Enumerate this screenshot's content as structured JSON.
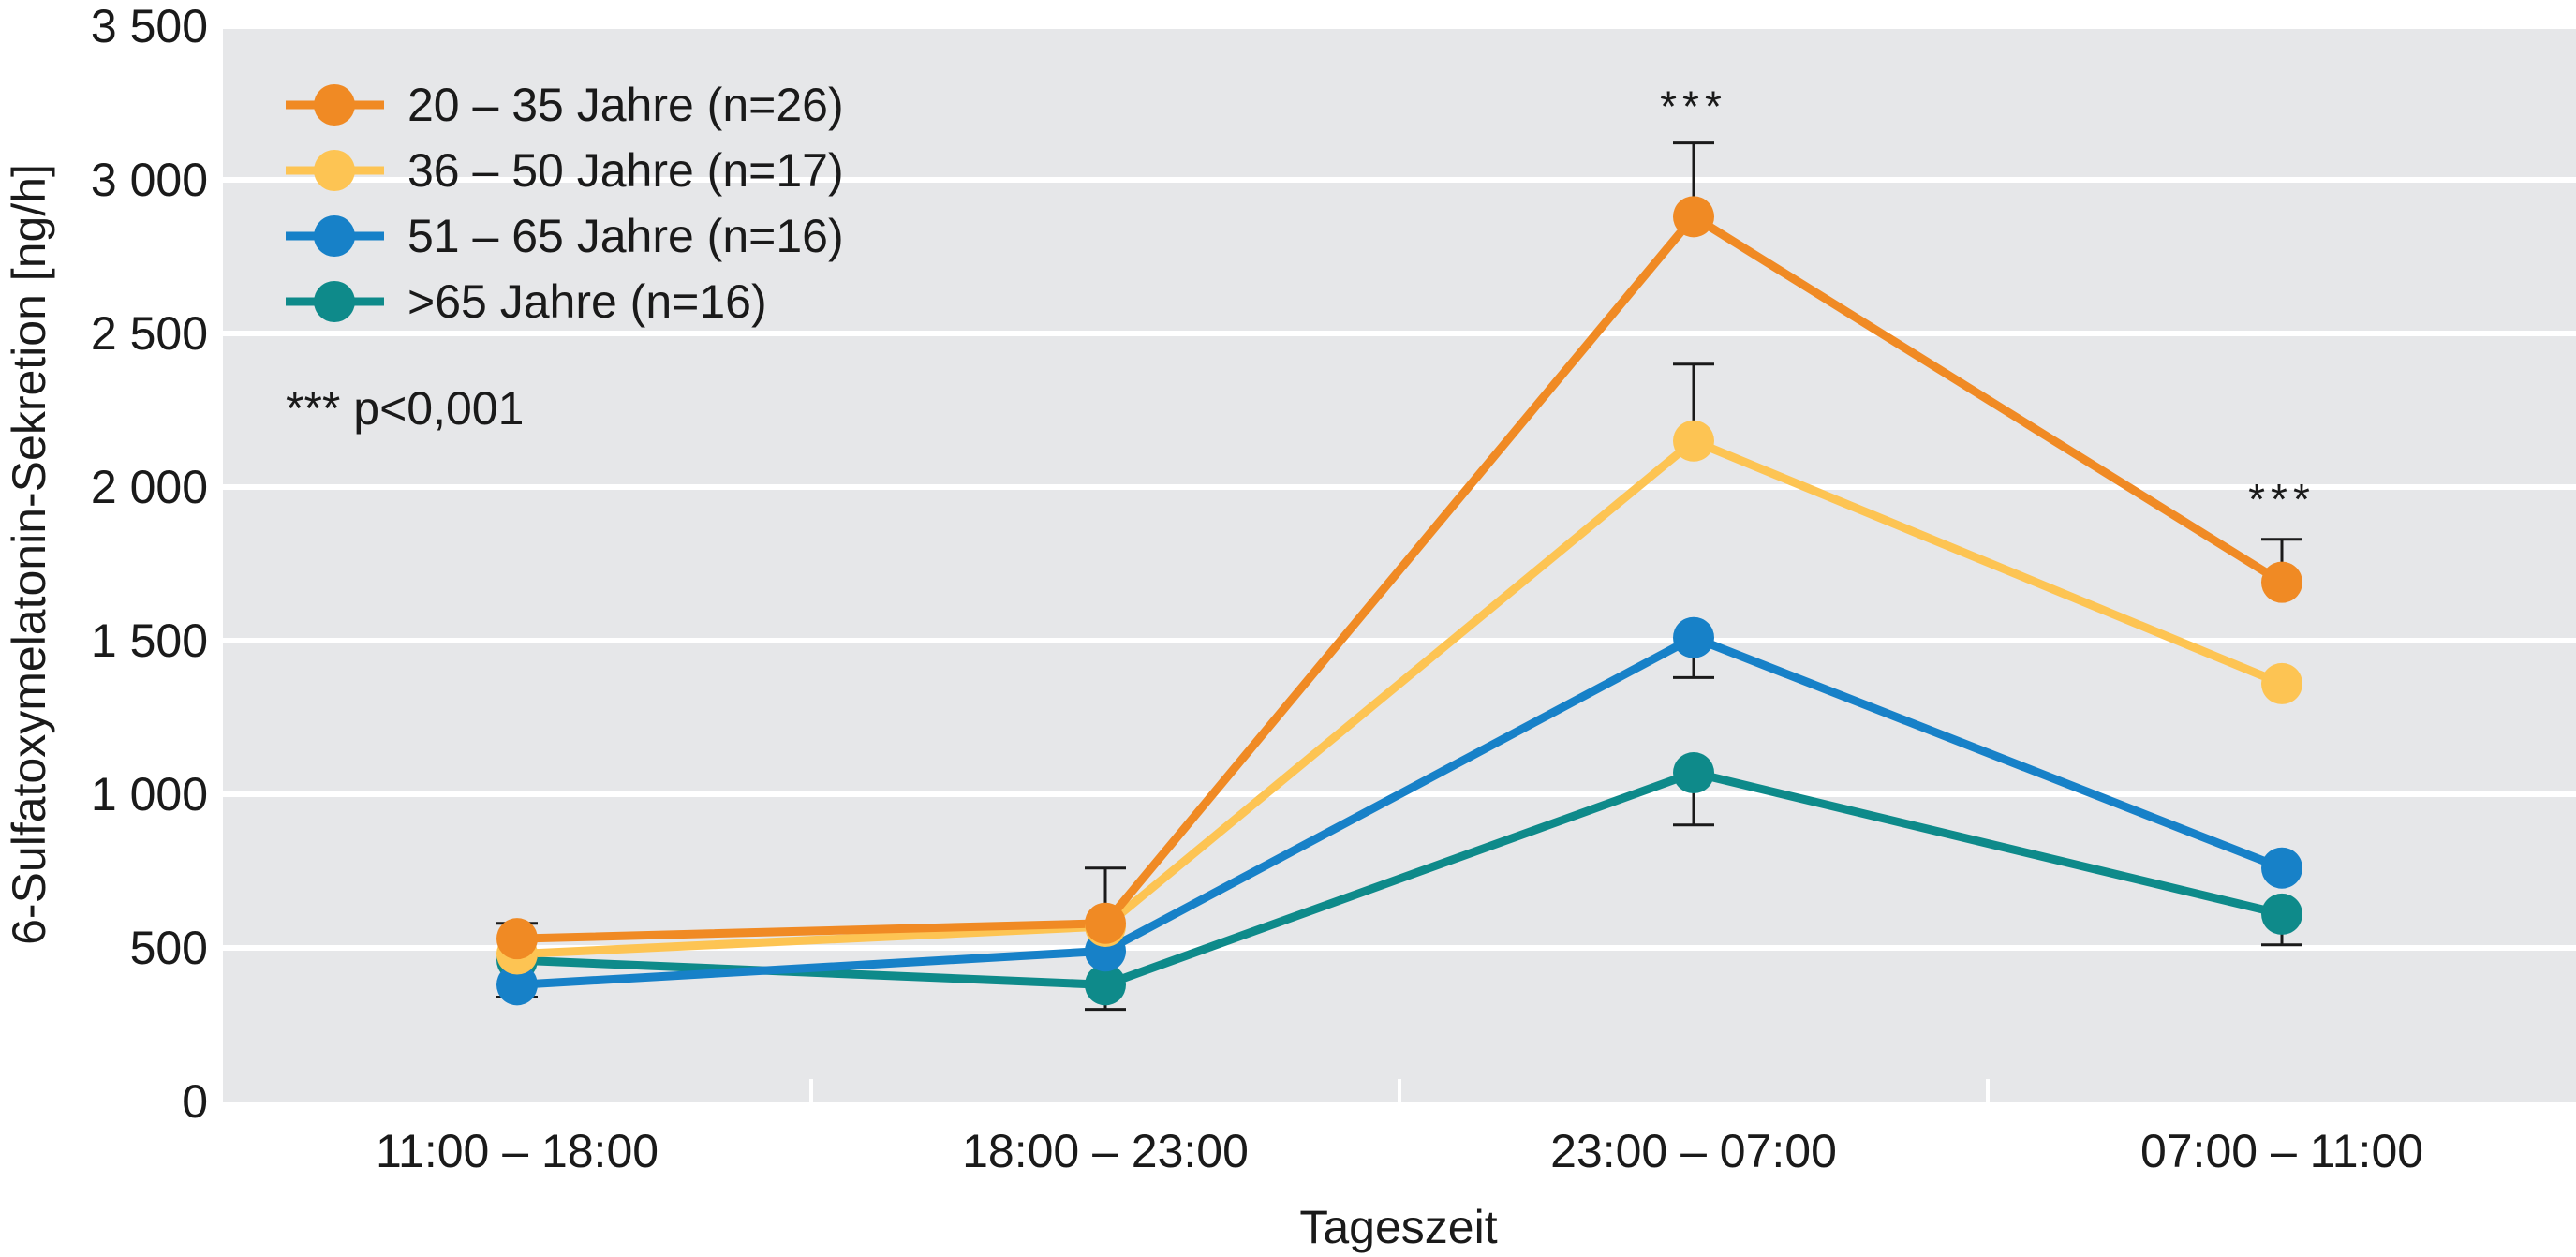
{
  "chart_data": {
    "type": "line",
    "xlabel": "Tageszeit",
    "ylabel": "6-Sulfatoxymelatonin-Sekretion [ng/h]",
    "categories": [
      "11:00 – 18:00",
      "18:00 – 23:00",
      "23:00 – 07:00",
      "07:00 – 11:00"
    ],
    "ylim": [
      0,
      3500
    ],
    "yticks": [
      0,
      500,
      1000,
      1500,
      2000,
      2500,
      3000,
      3500
    ],
    "ytick_labels": [
      "0",
      "500",
      "1 000",
      "1 500",
      "2 000",
      "2 500",
      "3 000",
      "3 500"
    ],
    "grid": true,
    "background_color": "#e6e7e9",
    "legend_placement": "top-left",
    "series": [
      {
        "name": "20 – 35 Jahre (n=26)",
        "color": "#f08a24",
        "values": [
          530,
          580,
          2880,
          1690
        ],
        "error_upper": [
          580,
          760,
          3120,
          1830
        ]
      },
      {
        "name": "36 – 50 Jahre (n=17)",
        "color": "#fdc453",
        "values": [
          480,
          570,
          2150,
          1360
        ],
        "error_upper": [
          null,
          null,
          2400,
          null
        ]
      },
      {
        "name": "51 – 65 Jahre (n=16)",
        "color": "#1781c8",
        "values": [
          380,
          490,
          1510,
          760
        ],
        "error_lower": [
          340,
          null,
          1380,
          null
        ]
      },
      {
        "name": ">65 Jahre (n=16)",
        "color": "#0e8a8a",
        "values": [
          460,
          380,
          1070,
          610
        ],
        "error_lower": [
          null,
          300,
          900,
          510
        ]
      }
    ],
    "annotations": [
      {
        "text": "***",
        "category_index": 2,
        "y": 3240
      },
      {
        "text": "***",
        "category_index": 3,
        "y": 1960
      }
    ],
    "significance_note": "*** p<0,001"
  }
}
